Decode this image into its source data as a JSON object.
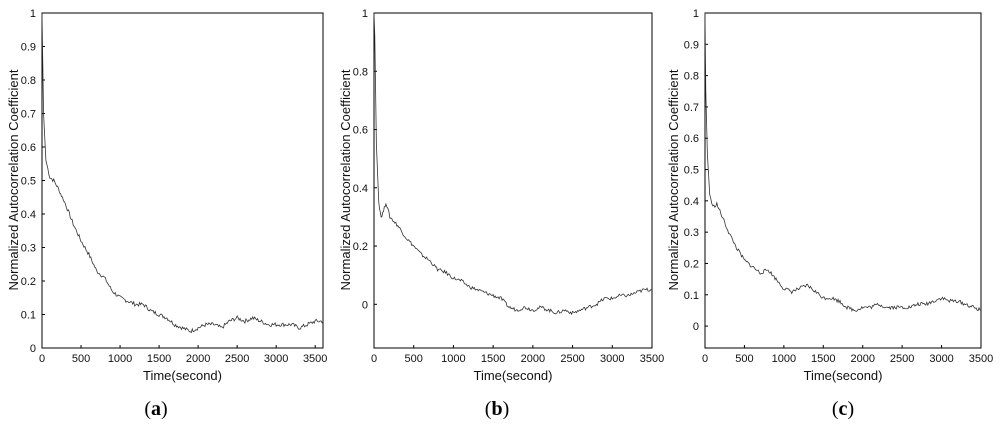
{
  "chart_data": [
    {
      "type": "line",
      "panel_label": "a",
      "xlabel": "Time(second)",
      "ylabel": "Normalized Autocorrelation Coefficient",
      "xlim": [
        0,
        3600
      ],
      "ylim": [
        0,
        1
      ],
      "xticks": [
        0,
        500,
        1000,
        1500,
        2000,
        2500,
        3000,
        3500
      ],
      "yticks": [
        0,
        0.1,
        0.2,
        0.3,
        0.4,
        0.5,
        0.6,
        0.7,
        0.8,
        0.9,
        1
      ],
      "ytick_labels": [
        "0",
        "0.1",
        "0.2",
        "0.3",
        "0.4",
        "0.5",
        "0.6",
        "0.7",
        "0.8",
        "0.9",
        "1"
      ],
      "series": [
        {
          "x": [
            0,
            20,
            50,
            100,
            150,
            200,
            300,
            400,
            500,
            600,
            700,
            800,
            900,
            1000,
            1100,
            1200,
            1300,
            1400,
            1500,
            1600,
            1700,
            1800,
            1900,
            2000,
            2100,
            2200,
            2300,
            2400,
            2500,
            2600,
            2700,
            2800,
            2900,
            3000,
            3100,
            3200,
            3300,
            3400,
            3500,
            3600
          ],
          "y": [
            1.0,
            0.7,
            0.56,
            0.51,
            0.5,
            0.48,
            0.43,
            0.37,
            0.32,
            0.28,
            0.23,
            0.21,
            0.17,
            0.15,
            0.14,
            0.13,
            0.13,
            0.11,
            0.1,
            0.09,
            0.07,
            0.06,
            0.05,
            0.06,
            0.07,
            0.07,
            0.06,
            0.08,
            0.09,
            0.08,
            0.09,
            0.08,
            0.07,
            0.07,
            0.07,
            0.07,
            0.06,
            0.07,
            0.08,
            0.08
          ]
        }
      ]
    },
    {
      "type": "line",
      "panel_label": "b",
      "xlabel": "Time(second)",
      "ylabel": "Normalized Autocorrelation Coefficient",
      "xlim": [
        0,
        3500
      ],
      "ylim": [
        -0.15,
        1
      ],
      "xticks": [
        0,
        500,
        1000,
        1500,
        2000,
        2500,
        3000,
        3500
      ],
      "yticks": [
        0,
        0.2,
        0.4,
        0.6,
        0.8,
        1
      ],
      "ytick_labels": [
        "0",
        "0.2",
        "0.4",
        "0.6",
        "0.8",
        "1"
      ],
      "series": [
        {
          "x": [
            0,
            10,
            30,
            60,
            90,
            120,
            150,
            200,
            300,
            400,
            500,
            600,
            700,
            800,
            900,
            1000,
            1100,
            1200,
            1300,
            1400,
            1500,
            1600,
            1700,
            1800,
            1900,
            2000,
            2100,
            2200,
            2300,
            2400,
            2500,
            2600,
            2700,
            2800,
            2900,
            3000,
            3100,
            3200,
            3300,
            3400,
            3500
          ],
          "y": [
            1.0,
            0.92,
            0.55,
            0.35,
            0.3,
            0.32,
            0.35,
            0.3,
            0.27,
            0.23,
            0.2,
            0.17,
            0.15,
            0.12,
            0.11,
            0.09,
            0.08,
            0.06,
            0.05,
            0.04,
            0.03,
            0.02,
            -0.01,
            -0.02,
            -0.01,
            -0.02,
            -0.01,
            -0.02,
            -0.03,
            -0.02,
            -0.03,
            -0.02,
            -0.01,
            0.0,
            0.02,
            0.02,
            0.03,
            0.03,
            0.04,
            0.05,
            0.05
          ]
        }
      ]
    },
    {
      "type": "line",
      "panel_label": "c",
      "xlabel": "Time(second)",
      "ylabel": "Normalized Autocorrelation Coefficient",
      "xlim": [
        0,
        3500
      ],
      "ylim": [
        -0.07,
        1
      ],
      "xticks": [
        0,
        500,
        1000,
        1500,
        2000,
        2500,
        3000,
        3500
      ],
      "yticks": [
        0,
        0.1,
        0.2,
        0.3,
        0.4,
        0.5,
        0.6,
        0.7,
        0.8,
        0.9,
        1
      ],
      "ytick_labels": [
        "0",
        "0.1",
        "0.2",
        "0.3",
        "0.4",
        "0.5",
        "0.6",
        "0.7",
        "0.8",
        "0.9",
        "1"
      ],
      "series": [
        {
          "x": [
            0,
            10,
            30,
            60,
            100,
            150,
            200,
            300,
            400,
            500,
            600,
            700,
            800,
            900,
            1000,
            1100,
            1200,
            1300,
            1400,
            1500,
            1600,
            1700,
            1800,
            1900,
            2000,
            2100,
            2200,
            2300,
            2400,
            2500,
            2600,
            2700,
            2800,
            2900,
            3000,
            3100,
            3200,
            3300,
            3400,
            3500
          ],
          "y": [
            1.0,
            0.75,
            0.55,
            0.42,
            0.38,
            0.39,
            0.36,
            0.3,
            0.25,
            0.21,
            0.19,
            0.17,
            0.18,
            0.15,
            0.12,
            0.11,
            0.12,
            0.13,
            0.11,
            0.09,
            0.09,
            0.08,
            0.06,
            0.05,
            0.06,
            0.06,
            0.07,
            0.06,
            0.06,
            0.06,
            0.06,
            0.07,
            0.07,
            0.08,
            0.09,
            0.08,
            0.08,
            0.07,
            0.06,
            0.05
          ]
        }
      ]
    }
  ],
  "captions": {
    "a": "a",
    "b": "b",
    "c": "c"
  }
}
